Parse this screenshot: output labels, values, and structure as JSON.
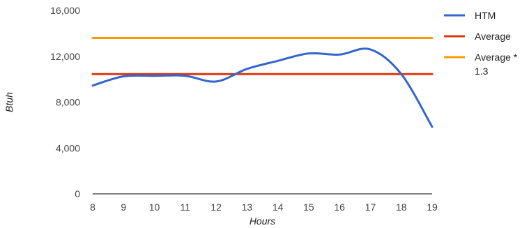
{
  "chart_data": {
    "type": "line",
    "xlabel": "Hours",
    "ylabel": "Btuh",
    "x": [
      8,
      9,
      10,
      11,
      12,
      13,
      14,
      15,
      16,
      17,
      18,
      19
    ],
    "xlim": [
      8,
      19
    ],
    "ylim": [
      0,
      16000
    ],
    "x_ticks": [
      "8",
      "9",
      "10",
      "11",
      "12",
      "13",
      "14",
      "15",
      "16",
      "17",
      "18",
      "19"
    ],
    "y_ticks": [
      "0",
      "4,000",
      "8,000",
      "12,000",
      "16,000"
    ],
    "grid": false,
    "legend_position": "right",
    "series": [
      {
        "name": "HTM",
        "color": "#3366cc",
        "values": [
          9450,
          10250,
          10300,
          10300,
          9800,
          10900,
          11600,
          12250,
          12150,
          12600,
          10450,
          5850
        ]
      },
      {
        "name": "Average",
        "color": "#dc3912",
        "values": [
          10450,
          10450,
          10450,
          10450,
          10450,
          10450,
          10450,
          10450,
          10450,
          10450,
          10450,
          10450
        ]
      },
      {
        "name": "Average * 1.3",
        "color": "#ff9900",
        "values": [
          13600,
          13600,
          13600,
          13600,
          13600,
          13600,
          13600,
          13600,
          13600,
          13600,
          13600,
          13600
        ]
      }
    ]
  }
}
